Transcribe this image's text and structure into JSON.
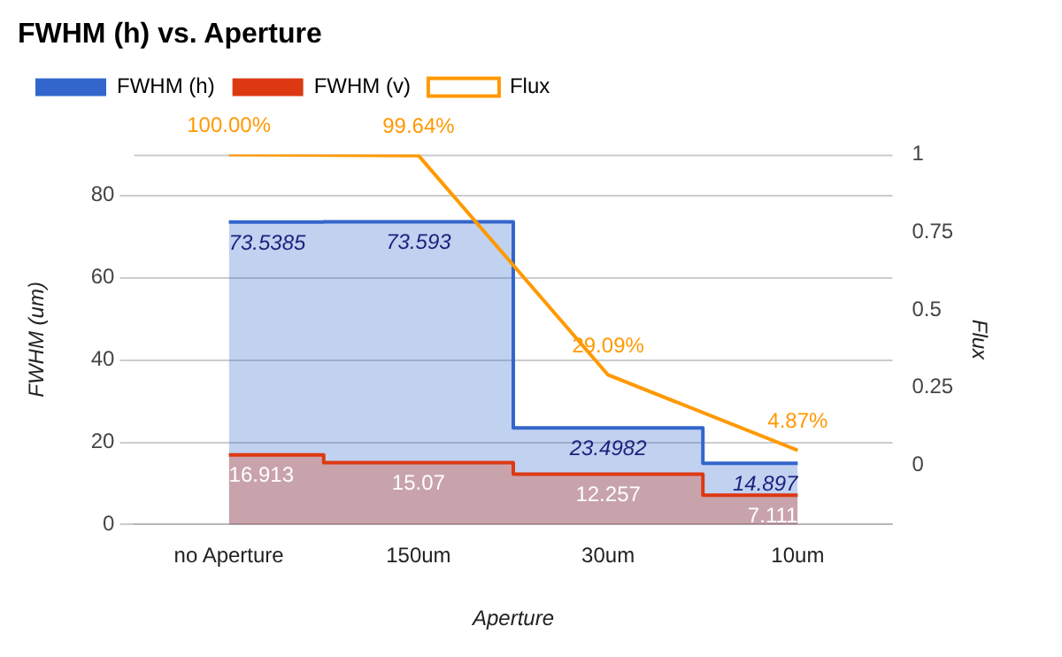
{
  "chart_data": {
    "type": "step",
    "title": "FWHM (h) vs. Aperture",
    "xlabel": "Aperture",
    "ylabel": "FWHM (um)",
    "y2label": "Flux",
    "categories": [
      "no Aperture",
      "150um",
      "30um",
      "10um"
    ],
    "series": [
      {
        "name": "FWHM (h)",
        "color": "#3366cc",
        "values": [
          73.5385,
          73.593,
          23.4982,
          14.897
        ],
        "value_labels": [
          "73.5385",
          "73.593",
          "23.4982",
          "14.897"
        ]
      },
      {
        "name": "FWHM (v)",
        "color": "#dc3912",
        "values": [
          16.913,
          15.07,
          12.257,
          7.111
        ],
        "value_labels": [
          "16.913",
          "15.07",
          "12.257",
          "7.111"
        ]
      },
      {
        "name": "Flux",
        "type": "line",
        "axis": "y2",
        "color": "#ff9900",
        "values": [
          1,
          0.9964,
          0.2909,
          0.0487
        ],
        "value_labels": [
          "100.00%",
          "99.64%",
          "29.09%",
          "4.87%"
        ]
      }
    ],
    "ylim": [
      0,
      90
    ],
    "yticks": [
      0,
      20,
      40,
      60,
      80
    ],
    "y2lim": [
      -0.19,
      1
    ],
    "y2ticks": [
      0,
      0.25,
      0.5,
      0.75,
      1
    ],
    "grid": "y",
    "legend": "top",
    "marker": "none"
  }
}
